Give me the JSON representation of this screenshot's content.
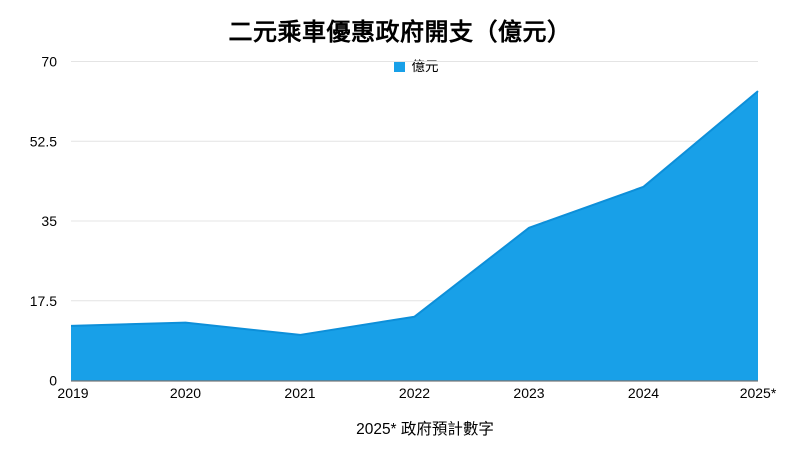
{
  "chart_data": {
    "type": "area",
    "title": "二元乘車優惠政府開支（億元）",
    "legend": "億元",
    "legend_position": "top-center",
    "categories": [
      "2019",
      "2020",
      "2021",
      "2022",
      "2023",
      "2024",
      "2025*"
    ],
    "series": [
      {
        "name": "億元",
        "values": [
          12,
          12.7,
          10,
          14,
          33.5,
          42.5,
          63.5
        ]
      }
    ],
    "ylim": [
      0,
      70
    ],
    "y_ticks": [
      0,
      17.5,
      35,
      52.5,
      70
    ],
    "grid": true,
    "xlabel": "",
    "ylabel": "",
    "footnote": "2025* 政府預計數字",
    "colors": {
      "area_fill": "#18a0e8",
      "area_stroke": "#0d8fd9",
      "gridline": "#e4e4e4",
      "baseline": "rgba(0,0,0,0.32)",
      "text": "#000000"
    }
  }
}
